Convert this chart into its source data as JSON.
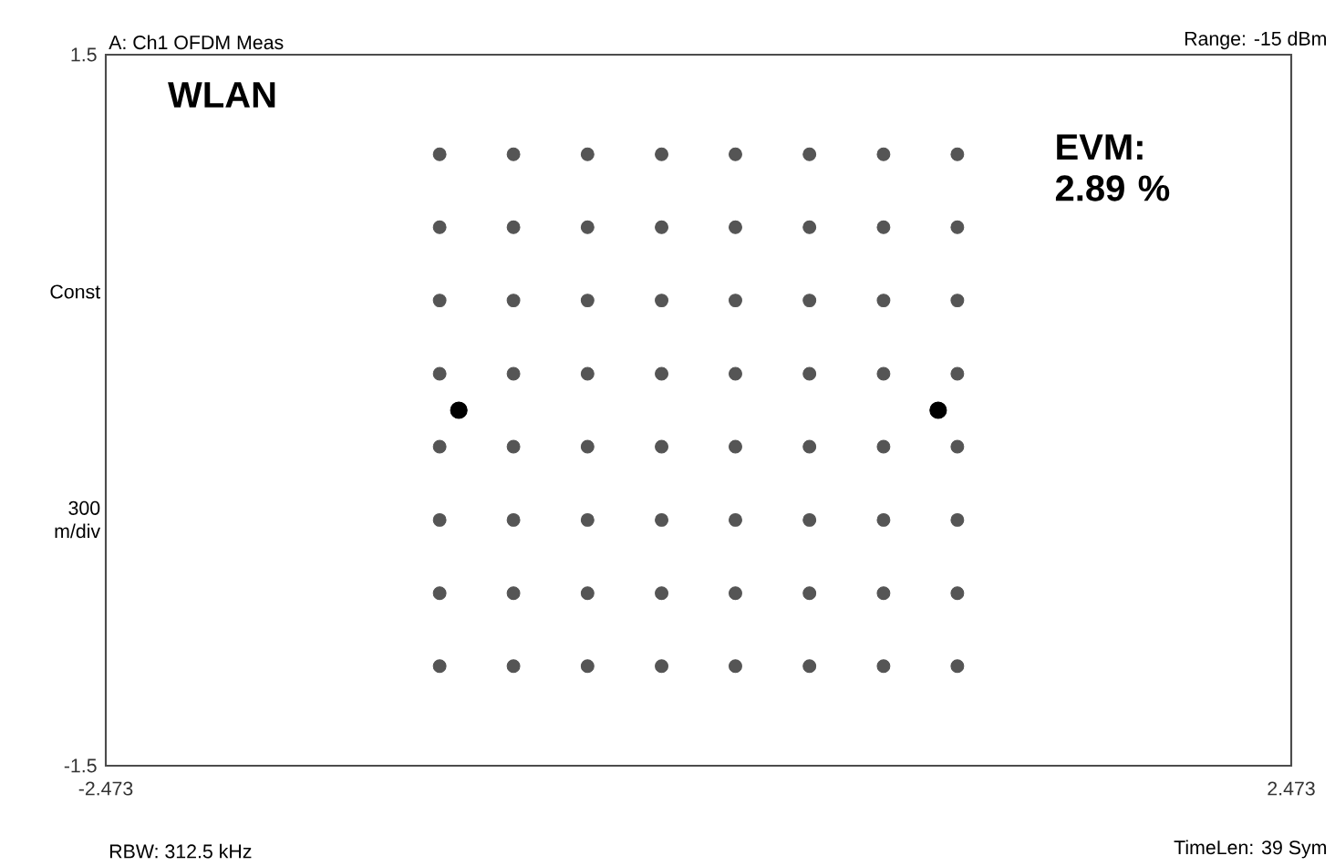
{
  "chart_data": {
    "type": "scatter",
    "title": "A: Ch1 OFDM Meas",
    "subtitle": "Range: -15 dBm",
    "ylabel": "Const",
    "annotations": [
      "WLAN",
      "EVM: 2.89 %",
      "300 m/div",
      "RBW: 312.5 kHz",
      "TimeLen: 39 Sym"
    ],
    "series": [
      {
        "color": "#555555",
        "x": [
          -1.08,
          -0.772,
          -0.463,
          -0.154,
          0.154,
          0.463,
          0.772,
          1.08,
          -1.08,
          -0.772,
          -0.463,
          -0.154,
          0.154,
          0.463,
          0.772,
          1.08,
          -1.08,
          -0.772,
          -0.463,
          -0.154,
          0.154,
          0.463,
          0.772,
          1.08,
          -1.08,
          -0.772,
          -0.463,
          -0.154,
          0.154,
          0.463,
          0.772,
          1.08,
          -1.08,
          -0.772,
          -0.463,
          -0.154,
          0.154,
          0.463,
          0.772,
          1.08,
          -1.08,
          -0.772,
          -0.463,
          -0.154,
          0.154,
          0.463,
          0.772,
          1.08,
          -1.08,
          -0.772,
          -0.463,
          -0.154,
          0.154,
          0.463,
          0.772,
          1.08,
          -1.08,
          -0.772,
          -0.463,
          -0.154,
          0.154,
          0.463,
          0.772,
          1.08
        ],
        "values": [
          1.08,
          1.08,
          1.08,
          1.08,
          1.08,
          1.08,
          1.08,
          1.08,
          0.772,
          0.772,
          0.772,
          0.772,
          0.772,
          0.772,
          0.772,
          0.772,
          0.463,
          0.463,
          0.463,
          0.463,
          0.463,
          0.463,
          0.463,
          0.463,
          0.154,
          0.154,
          0.154,
          0.154,
          0.154,
          0.154,
          0.154,
          0.154,
          -0.154,
          -0.154,
          -0.154,
          -0.154,
          -0.154,
          -0.154,
          -0.154,
          -0.154,
          -0.463,
          -0.463,
          -0.463,
          -0.463,
          -0.463,
          -0.463,
          -0.463,
          -0.463,
          -0.772,
          -0.772,
          -0.772,
          -0.772,
          -0.772,
          -0.772,
          -0.772,
          -0.772,
          -1.08,
          -1.08,
          -1.08,
          -1.08,
          -1.08,
          -1.08,
          -1.08,
          -1.08
        ]
      },
      {
        "color": "#000000",
        "x": [
          -1.0,
          1.0
        ],
        "values": [
          0.0,
          0.0
        ]
      }
    ],
    "xlim": [
      -2.473,
      2.473
    ],
    "ylim": [
      -1.5,
      1.5
    ],
    "xticks": [
      -2.473,
      2.473
    ],
    "yticks": [
      -1.5,
      1.5
    ]
  }
}
